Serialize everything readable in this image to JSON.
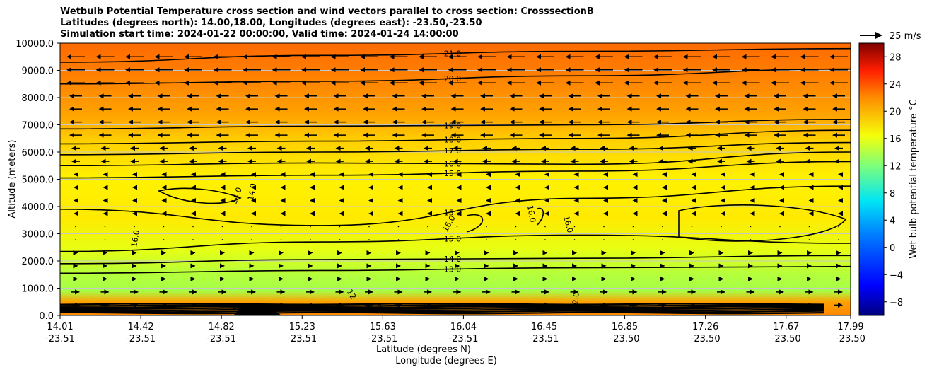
{
  "chart_data": {
    "type": "heatmap",
    "title_lines": [
      "Wetbulb Potential Temperature cross section and wind vectors parallel to cross section: CrosssectionB",
      "Latitudes (degrees north): 14.00,18.00, Longitudes (degrees east): -23.50,-23.50",
      "Simulation start time: 2024-01-22 00:00:00, Valid time: 2024-01-24 14:00:00"
    ],
    "xlabel_lat": "Latitude (degrees N)",
    "xlabel_lon": "Longitude (degrees E)",
    "ylabel": "Altitude (meters)",
    "ylim": [
      0,
      10000
    ],
    "yticks": [
      "0.0",
      "1000.0",
      "2000.0",
      "3000.0",
      "4000.0",
      "5000.0",
      "6000.0",
      "7000.0",
      "8000.0",
      "9000.0",
      "10000.0"
    ],
    "xticks": [
      {
        "lat": "14.01",
        "lon": "-23.51"
      },
      {
        "lat": "14.42",
        "lon": "-23.51"
      },
      {
        "lat": "14.82",
        "lon": "-23.51"
      },
      {
        "lat": "15.23",
        "lon": "-23.51"
      },
      {
        "lat": "15.63",
        "lon": "-23.51"
      },
      {
        "lat": "16.04",
        "lon": "-23.51"
      },
      {
        "lat": "16.45",
        "lon": "-23.51"
      },
      {
        "lat": "16.85",
        "lon": "-23.50"
      },
      {
        "lat": "17.26",
        "lon": "-23.50"
      },
      {
        "lat": "17.67",
        "lon": "-23.50"
      },
      {
        "lat": "17.99",
        "lon": "-23.50"
      }
    ],
    "colorbar_label": "Wet bulb potential temperature $^\\circ$C",
    "colorbar_label_display": "Wet bulb potential temperature °C",
    "colorbar_range": [
      -10,
      30
    ],
    "colorbar_ticks": [
      "−8",
      "−4",
      "0",
      "4",
      "8",
      "12",
      "16",
      "20",
      "24",
      "28"
    ],
    "quiver_key": "25 m/s",
    "contours": [
      {
        "label": "21.0",
        "levels_y": [
          9300,
          9550,
          9700,
          9800
        ]
      },
      {
        "label": "20.0",
        "levels_y": [
          8500,
          8600,
          8800,
          9050
        ]
      },
      {
        "label": "19.0",
        "levels_y": [
          6850,
          6950,
          7000,
          7200
        ]
      },
      {
        "label": "18.0",
        "levels_y": [
          6300,
          6400,
          6500,
          6800
        ]
      },
      {
        "label": "17.0",
        "levels_y": [
          5900,
          6000,
          6100,
          6350
        ]
      },
      {
        "label": "16.0",
        "levels_y": [
          5500,
          5600,
          5550,
          6000
        ]
      },
      {
        "label": "15.0",
        "levels_y": [
          5050,
          5150,
          5300,
          5650
        ]
      },
      {
        "label": "15.0",
        "levels_y": [
          3900,
          3300,
          4300,
          4750
        ]
      },
      {
        "label": "15.0",
        "levels_y": [
          2350,
          2700,
          2950,
          2650
        ]
      },
      {
        "label": "14.0",
        "levels_y": [
          1900,
          2050,
          2100,
          2200
        ]
      },
      {
        "label": "13.0",
        "levels_y": [
          1550,
          1650,
          1750,
          1800
        ]
      }
    ],
    "labels_inline": [
      "14.0",
      "14.0",
      "16.0",
      "16.0",
      "16.0",
      "16.0",
      "12",
      "2.0",
      "18.0",
      "20.0",
      "14.0"
    ]
  }
}
